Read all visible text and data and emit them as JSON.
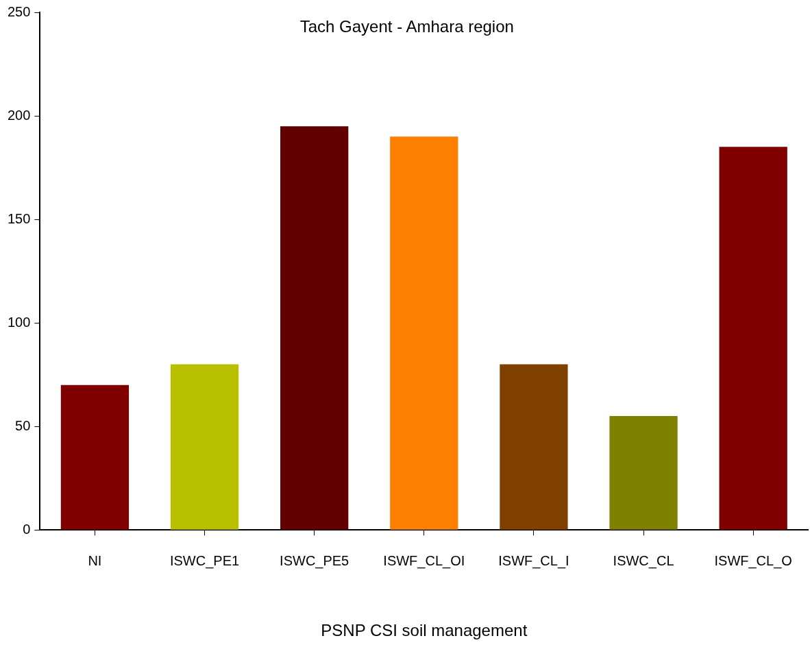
{
  "chart_data": {
    "type": "bar",
    "title": "Tach Gayent - Amhara region",
    "xlabel": "PSNP CSI soil management",
    "categories": [
      "NI",
      "ISWC_PE1",
      "ISWC_PE5",
      "ISWF_CL_OI",
      "ISWF_CL_I",
      "ISWC_CL",
      "ISWF_CL_O"
    ],
    "values": [
      70,
      80,
      195,
      190,
      80,
      55,
      185
    ],
    "colors": [
      "#800000",
      "#b8c000",
      "#600000",
      "#ff8000",
      "#804000",
      "#808000",
      "#800000"
    ],
    "ylim": [
      0,
      250
    ],
    "yticks": [
      0,
      50,
      100,
      150,
      200,
      250
    ],
    "legend": false
  }
}
